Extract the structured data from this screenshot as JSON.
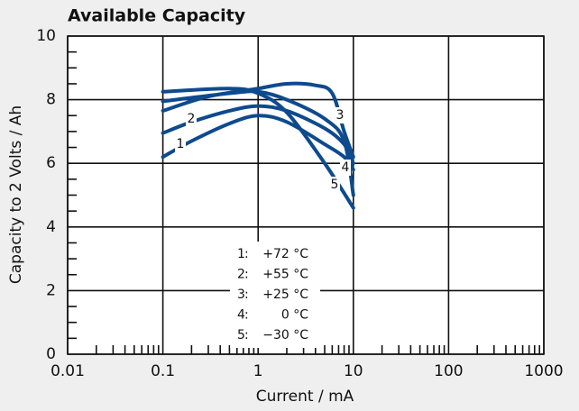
{
  "chart_data": {
    "type": "line",
    "title": "Available Capacity",
    "x_label": "Current / mA",
    "y_label": "Capacity to 2 Volts / Ah",
    "x_scale": "log",
    "grid": true,
    "color": "#0e4a8e",
    "xlim": [
      0.01,
      1000
    ],
    "xticks": [
      0.01,
      0.1,
      1,
      10,
      100,
      1000
    ],
    "x_minor_ticks": [
      0.02,
      0.03,
      0.04,
      0.05,
      0.06,
      0.07,
      0.08,
      0.09,
      0.2,
      0.3,
      0.4,
      0.5,
      0.6,
      0.7,
      0.8,
      0.9,
      2,
      3,
      4,
      5,
      6,
      7,
      8,
      9,
      20,
      30,
      40,
      50,
      60,
      70,
      80,
      90,
      200,
      300,
      400,
      500,
      600,
      700,
      800,
      900
    ],
    "ylim": [
      0,
      10
    ],
    "yticks": [
      0,
      2,
      4,
      6,
      8,
      10
    ],
    "y_minor_ticks": [
      0.5,
      1,
      1.5,
      2.5,
      3,
      3.5,
      4.5,
      5,
      5.5,
      6.5,
      7,
      7.5,
      8.5,
      9,
      9.5
    ],
    "series": [
      {
        "label": "1",
        "name": "+72 °C",
        "x": [
          0.1,
          0.2,
          0.5,
          1,
          2,
          5,
          8,
          10
        ],
        "values": [
          6.2,
          6.7,
          7.25,
          7.5,
          7.3,
          6.6,
          6.2,
          5.8
        ]
      },
      {
        "label": "2",
        "name": "+55 °C",
        "x": [
          0.1,
          0.2,
          0.5,
          1,
          2,
          5,
          8,
          10
        ],
        "values": [
          6.95,
          7.3,
          7.65,
          7.8,
          7.65,
          7.1,
          6.6,
          6.0
        ]
      },
      {
        "label": "3",
        "name": "+25 °C",
        "x": [
          0.1,
          0.3,
          1,
          2,
          4,
          6,
          8,
          10
        ],
        "values": [
          7.65,
          8.1,
          8.35,
          8.5,
          8.45,
          8.2,
          7.0,
          6.2
        ]
      },
      {
        "label": "4",
        "name": "0 °C",
        "x": [
          0.1,
          0.5,
          1,
          2,
          5,
          8,
          10
        ],
        "values": [
          7.95,
          8.2,
          8.25,
          8.0,
          7.4,
          6.7,
          5.0
        ]
      },
      {
        "label": "5",
        "name": "−30 °C",
        "x": [
          0.1,
          0.5,
          1,
          2,
          5,
          10
        ],
        "values": [
          8.25,
          8.35,
          8.2,
          7.6,
          6.0,
          4.6
        ]
      }
    ]
  }
}
